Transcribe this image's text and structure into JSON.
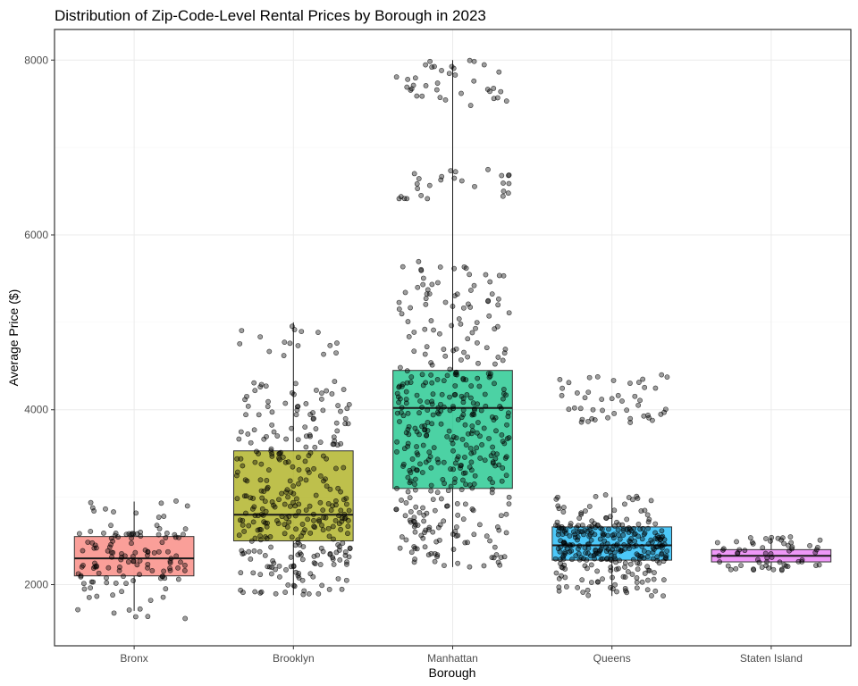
{
  "chart_data": {
    "type": "boxplot",
    "title": "Distribution of Zip-Code-Level Rental Prices by Borough in 2023",
    "xlabel": "Borough",
    "ylabel": "Average Price ($)",
    "ylim": [
      1300,
      8350
    ],
    "yticks": [
      2000,
      4000,
      6000,
      8000
    ],
    "grid": true,
    "legend": "none",
    "categories": [
      "Bronx",
      "Brooklyn",
      "Manhattan",
      "Queens",
      "Staten Island"
    ],
    "series": [
      {
        "category": "Bronx",
        "color": "#F8766D",
        "box": {
          "min": 1700,
          "q1": 2100,
          "median": 2300,
          "q3": 2550,
          "max": 2950
        },
        "points": {
          "count": 130,
          "clusters": [
            {
              "lo": 1600,
              "hi": 2000,
              "w": 0.15
            },
            {
              "lo": 2000,
              "hi": 2600,
              "w": 0.7
            },
            {
              "lo": 2600,
              "hi": 2970,
              "w": 0.15
            }
          ]
        }
      },
      {
        "category": "Brooklyn",
        "color": "#A3A500",
        "box": {
          "min": 1880,
          "q1": 2500,
          "median": 2800,
          "q3": 3530,
          "max": 5000
        },
        "points": {
          "count": 340,
          "clusters": [
            {
              "lo": 1880,
              "hi": 2500,
              "w": 0.25
            },
            {
              "lo": 2500,
              "hi": 3100,
              "w": 0.35
            },
            {
              "lo": 3100,
              "hi": 3550,
              "w": 0.15
            },
            {
              "lo": 3550,
              "hi": 4350,
              "w": 0.2
            },
            {
              "lo": 4600,
              "hi": 5000,
              "w": 0.05
            }
          ]
        }
      },
      {
        "category": "Manhattan",
        "color": "#00BF7D",
        "box": {
          "min": 2200,
          "q1": 3100,
          "median": 4020,
          "q3": 4450,
          "max": 8000
        },
        "points": {
          "count": 470,
          "clusters": [
            {
              "lo": 2200,
              "hi": 3100,
              "w": 0.2
            },
            {
              "lo": 3100,
              "hi": 4450,
              "w": 0.52
            },
            {
              "lo": 4450,
              "hi": 5700,
              "w": 0.17
            },
            {
              "lo": 6400,
              "hi": 6750,
              "w": 0.04
            },
            {
              "lo": 7480,
              "hi": 8020,
              "w": 0.07
            }
          ]
        }
      },
      {
        "category": "Queens",
        "color": "#00B0F6",
        "box": {
          "min": 1870,
          "q1": 2280,
          "median": 2450,
          "q3": 2660,
          "max": 3000
        },
        "points": {
          "count": 350,
          "clusters": [
            {
              "lo": 1870,
              "hi": 2280,
              "w": 0.2
            },
            {
              "lo": 2280,
              "hi": 2700,
              "w": 0.58
            },
            {
              "lo": 2700,
              "hi": 3030,
              "w": 0.1
            },
            {
              "lo": 3850,
              "hi": 4400,
              "w": 0.12
            }
          ]
        }
      },
      {
        "category": "Staten Island",
        "color": "#E76BF3",
        "box": {
          "min": 2180,
          "q1": 2260,
          "median": 2330,
          "q3": 2400,
          "max": 2540
        },
        "points": {
          "count": 60,
          "clusters": [
            {
              "lo": 2160,
              "hi": 2550,
              "w": 1.0
            }
          ]
        }
      }
    ]
  }
}
